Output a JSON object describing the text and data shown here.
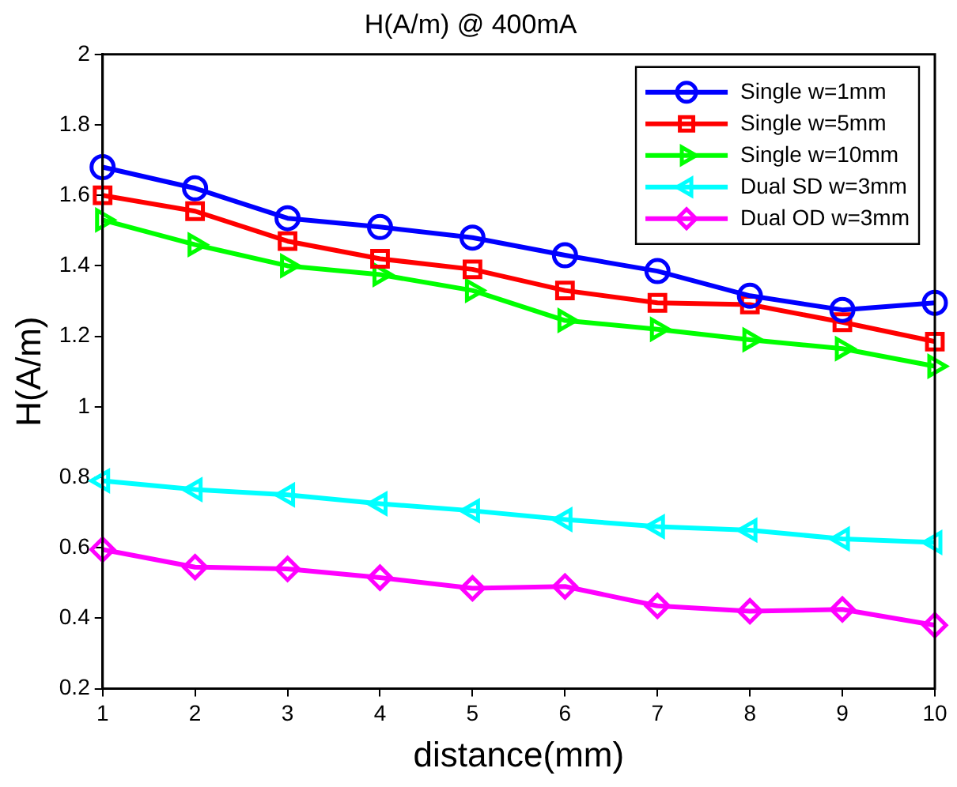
{
  "chart_data": {
    "type": "line",
    "title": "H(A/m) @ 400mA",
    "xlabel": "distance(mm)",
    "ylabel": "H(A/m)",
    "x": [
      1,
      2,
      3,
      4,
      5,
      6,
      7,
      8,
      9,
      10
    ],
    "xlim": [
      1,
      10
    ],
    "xticks": [
      1,
      2,
      3,
      4,
      5,
      6,
      7,
      8,
      9,
      10
    ],
    "ylim": [
      0.2,
      2
    ],
    "yticks": [
      0.2,
      0.4,
      0.6,
      0.8,
      1,
      1.2,
      1.4,
      1.6,
      1.8,
      2
    ],
    "grid": false,
    "legend": "top right",
    "line_style": "solid",
    "series": [
      {
        "name": "Single w=1mm",
        "color": "#0000ff",
        "marker": "circle",
        "values": [
          1.68,
          1.62,
          1.535,
          1.51,
          1.48,
          1.43,
          1.385,
          1.315,
          1.275,
          1.295
        ]
      },
      {
        "name": "Single w=5mm",
        "color": "#ff0000",
        "marker": "square",
        "values": [
          1.6,
          1.555,
          1.47,
          1.42,
          1.39,
          1.33,
          1.295,
          1.29,
          1.24,
          1.185
        ]
      },
      {
        "name": "Single w=10mm",
        "color": "#00ff00",
        "marker": "triangle-right",
        "values": [
          1.53,
          1.46,
          1.4,
          1.375,
          1.33,
          1.245,
          1.22,
          1.19,
          1.165,
          1.115
        ]
      },
      {
        "name": "Dual SD w=3mm",
        "color": "#00ffff",
        "marker": "triangle-left",
        "values": [
          0.79,
          0.765,
          0.75,
          0.725,
          0.705,
          0.68,
          0.66,
          0.65,
          0.625,
          0.615
        ]
      },
      {
        "name": "Dual OD w=3mm",
        "color": "#ff00ff",
        "marker": "diamond",
        "values": [
          0.595,
          0.545,
          0.54,
          0.515,
          0.485,
          0.49,
          0.435,
          0.42,
          0.425,
          0.38
        ]
      }
    ]
  }
}
